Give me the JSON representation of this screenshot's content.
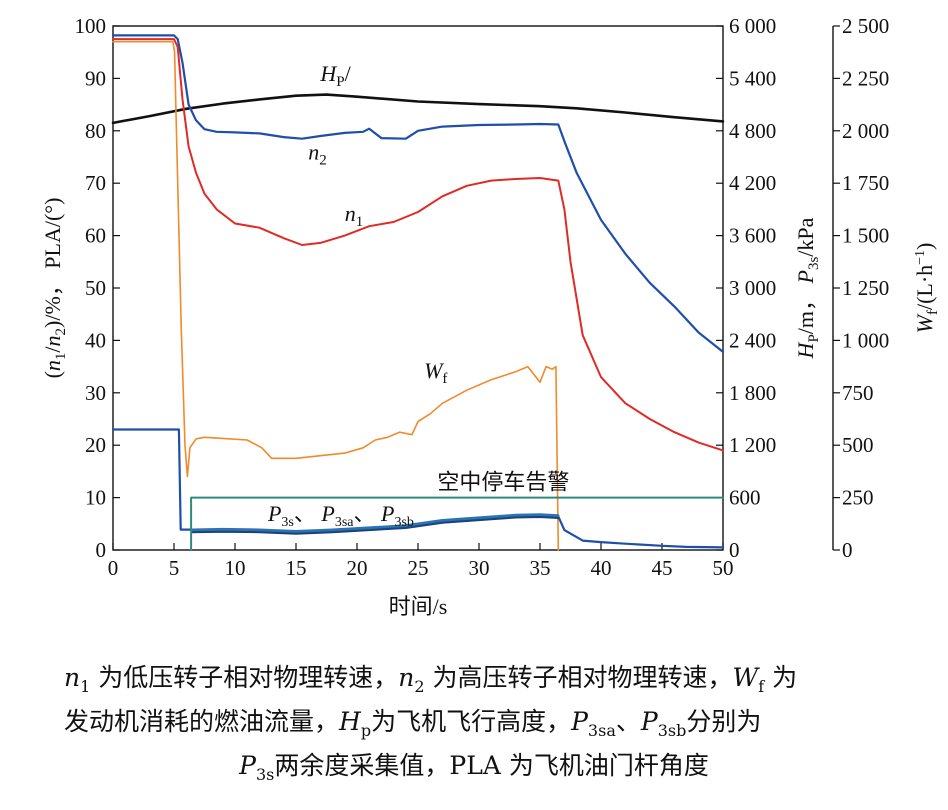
{
  "chart_data": {
    "type": "line",
    "xlabel": "时间/s",
    "xlim": [
      0,
      50
    ],
    "xticks": [
      "0",
      "5",
      "10",
      "15",
      "20",
      "25",
      "30",
      "35",
      "40",
      "45",
      "50"
    ],
    "y_left": {
      "label": "(n1/n2)/%,  PLA/(°)",
      "ylim": [
        0,
        100
      ],
      "ticks": [
        "0",
        "10",
        "20",
        "30",
        "40",
        "50",
        "60",
        "70",
        "80",
        "90",
        "100"
      ]
    },
    "y_right1": {
      "label": "Hp/m,  P3s/kPa",
      "ylim": [
        0,
        6000
      ],
      "ticks": [
        "0",
        "600",
        "1 200",
        "1 800",
        "2 400",
        "3 000",
        "3 600",
        "4 200",
        "4 800",
        "5 400",
        "6 000"
      ]
    },
    "y_right2": {
      "label": "Wf/(L·h⁻¹)",
      "ylim": [
        0,
        2500
      ],
      "ticks": [
        "0",
        "250",
        "500",
        "750",
        "1 000",
        "1 250",
        "1 500",
        "1 750",
        "2 000",
        "2 250",
        "2 500"
      ]
    },
    "series": [
      {
        "name": "Hp",
        "axis": "left",
        "color": "#111111",
        "x": [
          0,
          3,
          6,
          9,
          12,
          15,
          17.5,
          20,
          25,
          30,
          35,
          38,
          42,
          46,
          50
        ],
        "y": [
          81.5,
          82.8,
          84.2,
          85.2,
          86,
          86.7,
          86.9,
          86.5,
          85.6,
          85.1,
          84.7,
          84.3,
          83.5,
          82.6,
          81.8
        ]
      },
      {
        "name": "n2",
        "axis": "left",
        "color": "#1f4fa8",
        "x": [
          0,
          5,
          5.3,
          5.7,
          6.2,
          6.8,
          7.5,
          8.5,
          10,
          12,
          14,
          15.5,
          17,
          19,
          20.5,
          21,
          22,
          24,
          25,
          27,
          30,
          33,
          35,
          36.5,
          37,
          38,
          40,
          42,
          44,
          46,
          48,
          50
        ],
        "y": [
          98.2,
          98.2,
          97.5,
          93,
          85,
          82,
          80.3,
          79.8,
          79.7,
          79.5,
          78.8,
          78.5,
          79,
          79.6,
          79.8,
          80.4,
          78.6,
          78.5,
          80,
          80.8,
          81.1,
          81.2,
          81.3,
          81.2,
          78,
          72,
          63,
          56.5,
          51,
          46.5,
          41.5,
          37.8
        ]
      },
      {
        "name": "n1",
        "axis": "left",
        "color": "#e02a26",
        "x": [
          0,
          5,
          5.3,
          5.7,
          6.2,
          6.8,
          7.5,
          8.5,
          10,
          12,
          14,
          15.5,
          17,
          19,
          21,
          23,
          25,
          27,
          29,
          31,
          33,
          35,
          36.5,
          37,
          37.5,
          38.5,
          40,
          42,
          44,
          46,
          48,
          50
        ],
        "y": [
          97.5,
          97.5,
          96,
          86,
          77,
          72,
          68,
          65,
          62.3,
          61.5,
          59.5,
          58.2,
          58.6,
          60,
          61.8,
          62.6,
          64.5,
          67.5,
          69.5,
          70.5,
          70.8,
          71,
          70.5,
          65,
          55,
          41,
          33,
          28,
          25,
          22.5,
          20.5,
          19
        ]
      },
      {
        "name": "Wf",
        "axis": "left",
        "color": "#f08a2a",
        "x": [
          0,
          4.9,
          5.05,
          5.15,
          5.6,
          5.9,
          6.1,
          6.3,
          6.8,
          7.5,
          9,
          11,
          12.2,
          13,
          15,
          17,
          19,
          20.5,
          21.5,
          22.5,
          23.5,
          24.5,
          25,
          26,
          27,
          29,
          31,
          33,
          34,
          35,
          35.5,
          36,
          36.3,
          36.5
        ],
        "y": [
          97,
          97,
          95,
          85,
          42,
          20,
          14,
          19.5,
          21.2,
          21.5,
          21.3,
          21,
          19.5,
          17.5,
          17.5,
          18,
          18.5,
          19.5,
          21,
          21.5,
          22.5,
          22,
          24.5,
          26,
          28,
          30.5,
          32.5,
          34,
          35,
          32,
          35,
          34.5,
          35,
          0
        ]
      },
      {
        "name": "PLA",
        "axis": "left",
        "color": "#1f4fa8",
        "x": [
          0,
          5.4,
          5.55,
          9,
          12,
          15,
          18,
          21,
          24,
          27,
          30,
          33,
          35,
          36.5,
          37,
          38.5,
          40,
          42,
          45,
          47,
          50
        ],
        "y": [
          23,
          23,
          3.9,
          3.9,
          3.8,
          3.5,
          3.8,
          4.2,
          4.6,
          5.6,
          6.1,
          6.6,
          6.7,
          6.4,
          3.8,
          1.8,
          1.5,
          1.2,
          0.8,
          0.6,
          0.5
        ]
      },
      {
        "name": "P3s",
        "axis": "left",
        "color": "#1b8c4a",
        "x": [
          6.5,
          9,
          12,
          15,
          18,
          21,
          24,
          27,
          30,
          33,
          35,
          36.5
        ],
        "y": [
          3.6,
          3.7,
          3.6,
          3.3,
          3.6,
          4.0,
          4.4,
          5.4,
          5.9,
          6.4,
          6.5,
          6.3
        ]
      },
      {
        "name": "P3sa",
        "axis": "left",
        "color": "#2f6fc0",
        "x": [
          6.5,
          9,
          12,
          15,
          18,
          21,
          24,
          27,
          30,
          33,
          35,
          36.5
        ],
        "y": [
          3.9,
          4.0,
          3.9,
          3.6,
          3.9,
          4.3,
          4.7,
          5.7,
          6.2,
          6.7,
          6.8,
          6.6
        ]
      },
      {
        "name": "P3sb",
        "axis": "left",
        "color": "#1a3f8c",
        "x": [
          6.5,
          9,
          12,
          15,
          18,
          21,
          24,
          27,
          30,
          33,
          35,
          36.5
        ],
        "y": [
          3.4,
          3.5,
          3.4,
          3.1,
          3.4,
          3.8,
          4.2,
          5.2,
          5.7,
          6.2,
          6.3,
          6.1
        ]
      },
      {
        "name": "空中停车告警",
        "axis": "left",
        "color": "#2e8b7a",
        "type": "step",
        "x": [
          6.4,
          6.4,
          50
        ],
        "y": [
          0,
          10,
          10
        ]
      }
    ],
    "annotations": [
      {
        "text": "HP/",
        "x": 17,
        "y": 89.5
      },
      {
        "text": "n2",
        "x": 16,
        "y": 74.5
      },
      {
        "text": "n1",
        "x": 19,
        "y": 62.8
      },
      {
        "text": "Wf",
        "x": 25.5,
        "y": 32.8
      },
      {
        "text": "空中停车告警",
        "x": 32,
        "y": 11.5
      },
      {
        "text": "P3s、P3sa、P3sb",
        "x": 12.7,
        "y": 5.5
      }
    ],
    "grid": false
  },
  "caption": {
    "line1": "n1 为低压转子相对物理转速，n2 为高压转子相对物理转速，Wf 为",
    "line2": "发动机消耗的燃油流量，Hp为飞机飞行高度，P3sa、P3sb分别为",
    "line3": "P3s两余度采集值，PLA 为飞机油门杆角度"
  }
}
